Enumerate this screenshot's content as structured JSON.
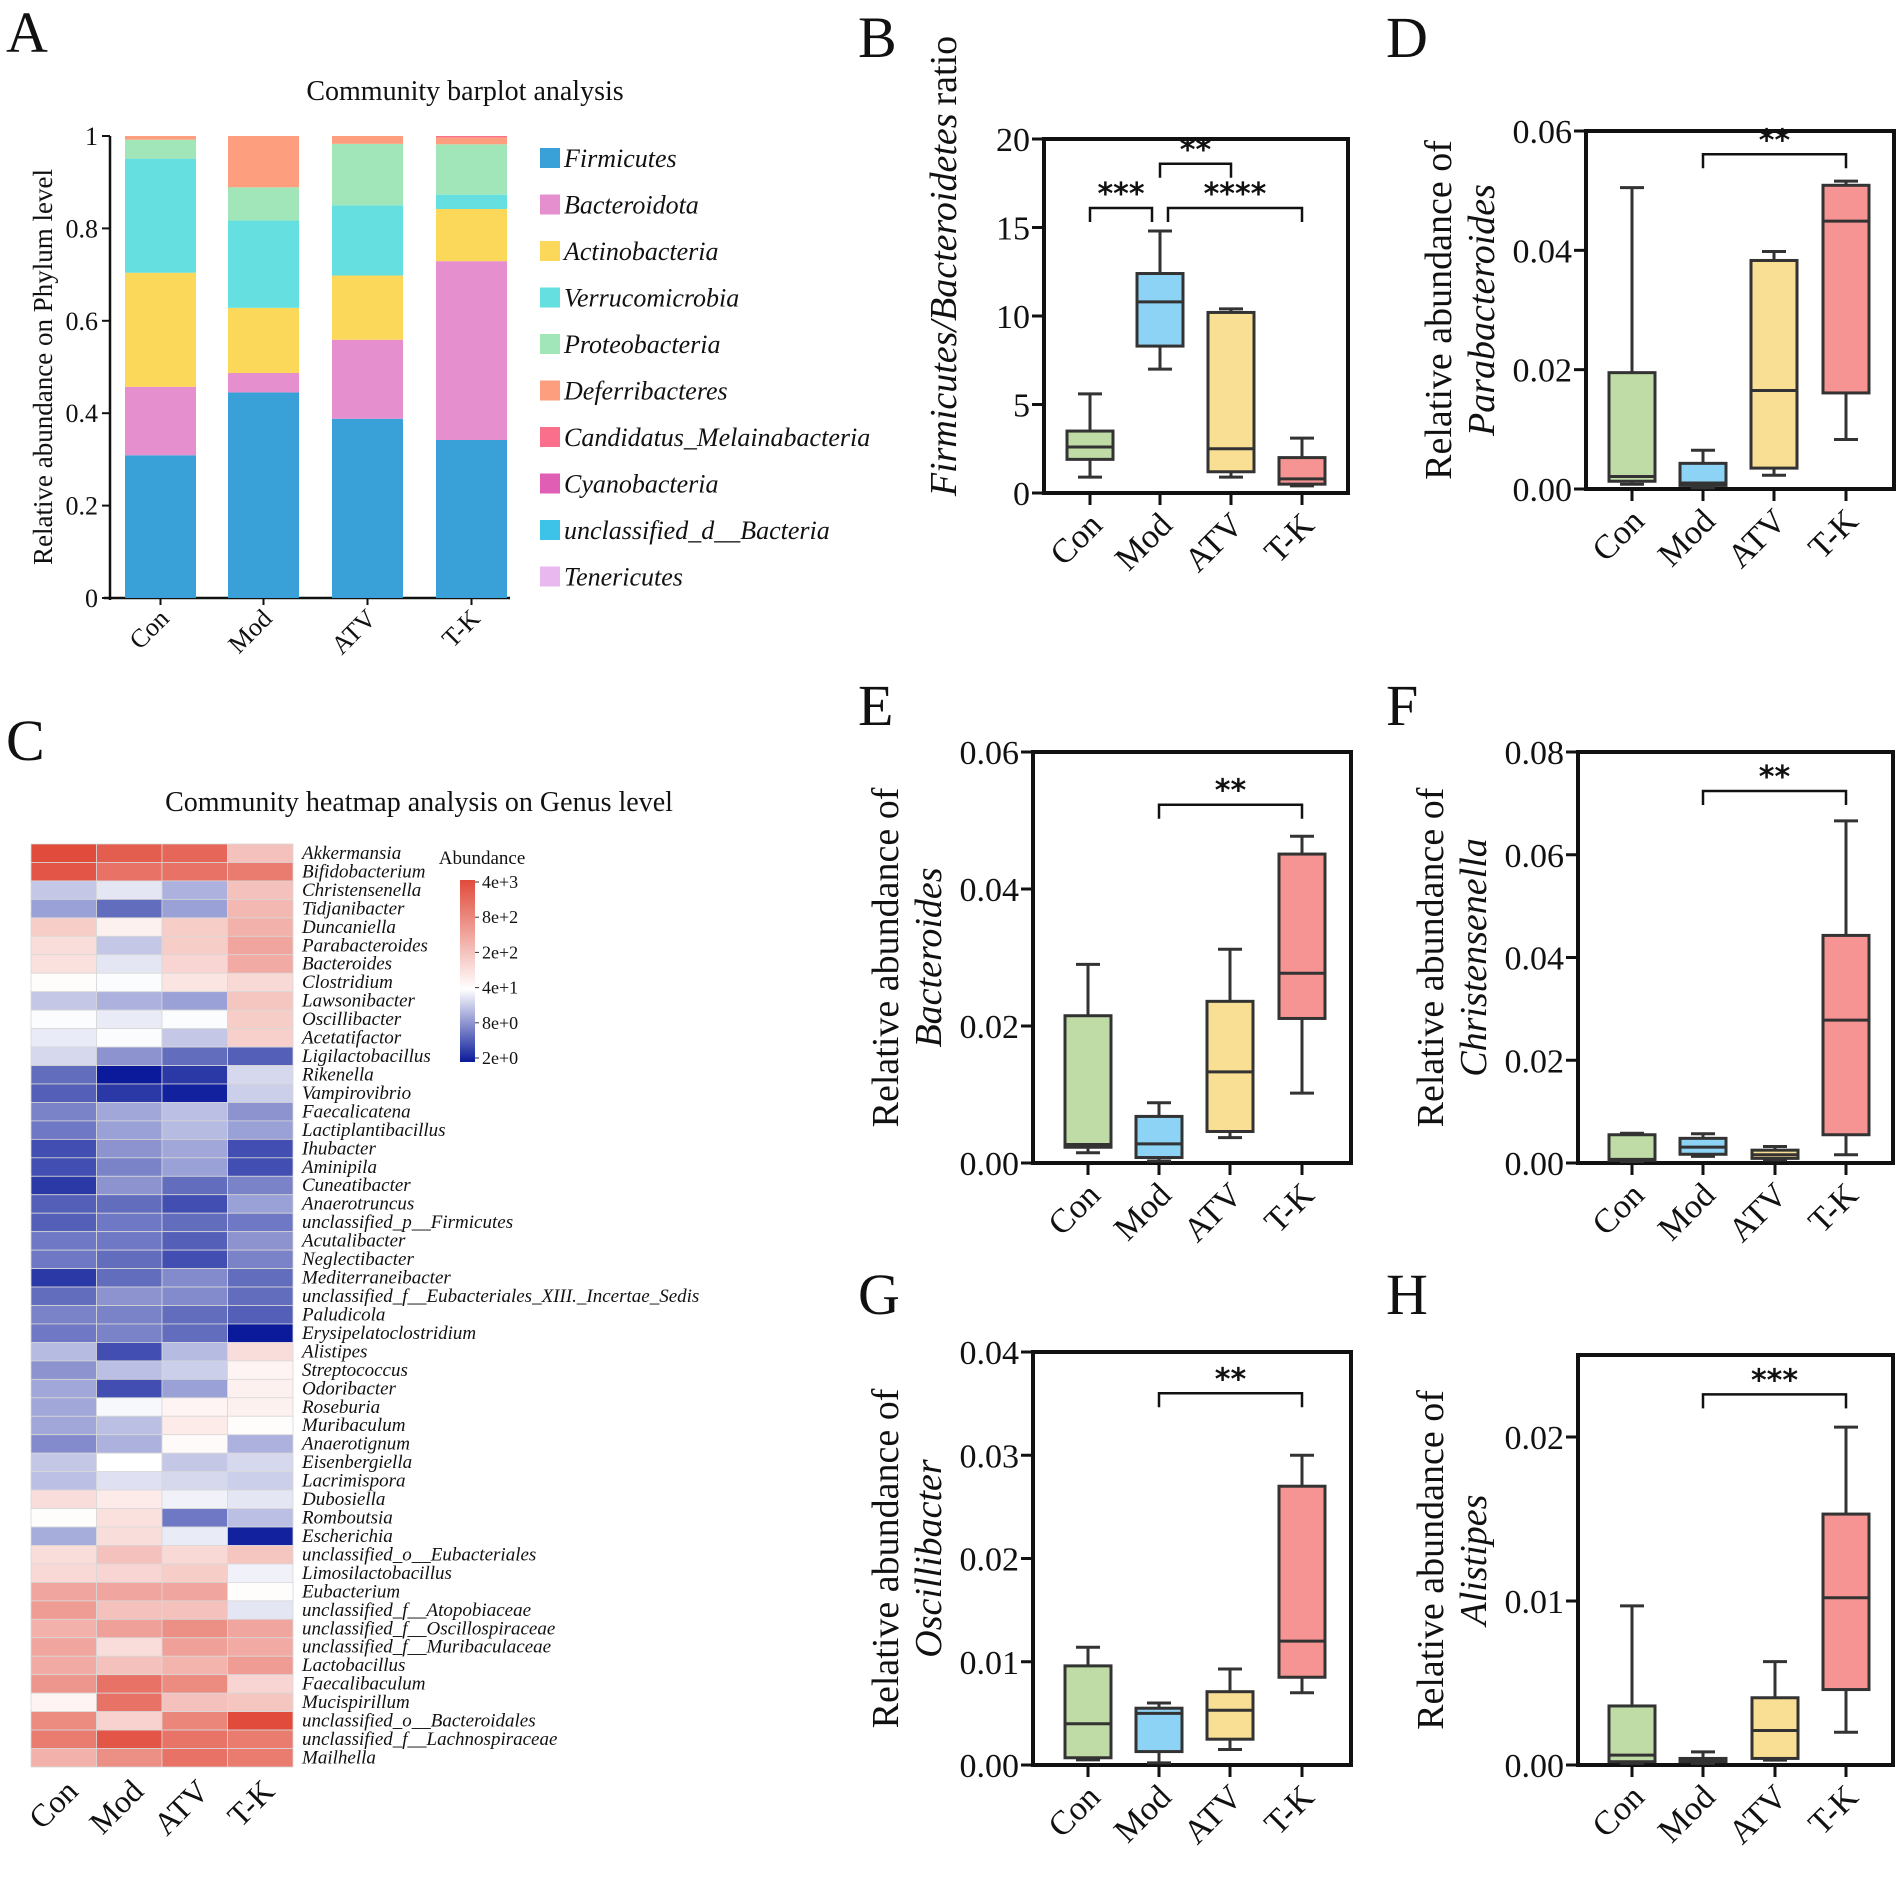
{
  "chart_data": [
    {
      "panel": "A",
      "type": "bar",
      "stacked": true,
      "title": "Community barplot analysis",
      "ylabel": "Relative abundance on Phylum level",
      "ylim": [
        0,
        1
      ],
      "yticks": [
        0,
        0.2,
        0.4,
        0.6,
        0.8,
        1
      ],
      "ytick_labels": [
        "0",
        "0.2",
        "0.4",
        "0.6",
        "0.8",
        "1"
      ],
      "categories": [
        "Con",
        "Mod",
        "ATV",
        "T-K"
      ],
      "legend_position": "right",
      "series": [
        {
          "name": "Firmicutes",
          "color": "#3aa0d8",
          "values": [
            0.309,
            0.445,
            0.388,
            0.342
          ]
        },
        {
          "name": "Bacteroidota",
          "color": "#e58fcf",
          "values": [
            0.148,
            0.042,
            0.171,
            0.387
          ]
        },
        {
          "name": "Actinobacteria",
          "color": "#fcd85a",
          "values": [
            0.247,
            0.141,
            0.139,
            0.113
          ]
        },
        {
          "name": "Verrucomicrobia",
          "color": "#66dfe0",
          "values": [
            0.247,
            0.189,
            0.152,
            0.031
          ]
        },
        {
          "name": "Proteobacteria",
          "color": "#a1e6b8",
          "values": [
            0.041,
            0.072,
            0.133,
            0.109
          ]
        },
        {
          "name": "Deferribacteres",
          "color": "#fd9e7e",
          "values": [
            0.008,
            0.111,
            0.017,
            0.015
          ]
        },
        {
          "name": "Candidatus_Melainabacteria",
          "color": "#f96f8c",
          "values": [
            0,
            0,
            0,
            0.003
          ]
        },
        {
          "name": "Cyanobacteria",
          "color": "#e05fb4",
          "values": [
            0,
            0,
            0,
            0
          ]
        },
        {
          "name": "unclassified_d__Bacteria",
          "color": "#3ec3e8",
          "values": [
            0,
            0,
            0,
            0
          ]
        },
        {
          "name": "Tenericutes",
          "color": "#e8b8ef",
          "values": [
            0,
            0,
            0,
            0
          ]
        }
      ]
    },
    {
      "panel": "C",
      "type": "heatmap",
      "title": "Community heatmap analysis on Genus level",
      "columns": [
        "Con",
        "Mod",
        "ATV",
        "T-K"
      ],
      "legend_title": "Abundance",
      "colorbar_ticks": [
        "4e+3",
        "8e+2",
        "2e+2",
        "4e+1",
        "8e+0",
        "2e+0"
      ],
      "colorbar_range": [
        2,
        4000
      ],
      "scale": "log",
      "colors": {
        "high": "#e14b3b",
        "mid": "#ffffff",
        "low": "#0a1a9a"
      },
      "rows": [
        "Akkermansia",
        "Bifidobacterium",
        "Christensenella",
        "Tidjanibacter",
        "Duncaniella",
        "Parabacteroides",
        "Bacteroides",
        "Clostridium",
        "Lawsonibacter",
        "Oscillibacter",
        "Acetatifactor",
        "Ligilactobacillus",
        "Rikenella",
        "Vampirovibrio",
        "Faecalicatena",
        "Lactiplantibacillus",
        "Ihubacter",
        "Aminipila",
        "Cuneatibacter",
        "Anaerotruncus",
        "unclassified_p__Firmicutes",
        "Acutalibacter",
        "Neglectibacter",
        "Mediterraneibacter",
        "unclassified_f__Eubacteriales_XIII._Incertae_Sedis",
        "Paludicola",
        "Erysipelatoclostridium",
        "Alistipes",
        "Streptococcus",
        "Odoribacter",
        "Roseburia",
        "Muribaculum",
        "Anaerotignum",
        "Eisenbergiella",
        "Lacrimispora",
        "Dubosiella",
        "Romboutsia",
        "Escherichia",
        "unclassified_o__Eubacteriales",
        "Limosilactobacillus",
        "Eubacterium",
        "unclassified_f__Atopobiaceae",
        "unclassified_f__Oscillospiraceae",
        "unclassified_f__Muribaculaceae",
        "Lactobacillus",
        "Faecalibaculum",
        "Mucispirillum",
        "unclassified_o__Bacteroidales",
        "unclassified_f__Lachnospiraceae",
        "Mailhella"
      ],
      "values": [
        [
          4000,
          2500,
          2000,
          200
        ],
        [
          3000,
          1500,
          1500,
          1200
        ],
        [
          20,
          30,
          15,
          200
        ],
        [
          12,
          6,
          12,
          250
        ],
        [
          150,
          60,
          150,
          300
        ],
        [
          100,
          20,
          150,
          400
        ],
        [
          90,
          30,
          120,
          350
        ],
        [
          45,
          40,
          80,
          110
        ],
        [
          20,
          15,
          12,
          180
        ],
        [
          40,
          32,
          40,
          150
        ],
        [
          32,
          40,
          20,
          140
        ],
        [
          25,
          10,
          6,
          5
        ],
        [
          6,
          2,
          3,
          25
        ],
        [
          5,
          3,
          2.2,
          22
        ],
        [
          8,
          13,
          18,
          10
        ],
        [
          7,
          12,
          17,
          12
        ],
        [
          4,
          10,
          13,
          4
        ],
        [
          4,
          8,
          12,
          4
        ],
        [
          3,
          10,
          6,
          8
        ],
        [
          5,
          6,
          4,
          12
        ],
        [
          5,
          7,
          6,
          7
        ],
        [
          7,
          7,
          5,
          10
        ],
        [
          7,
          6,
          4,
          8
        ],
        [
          3,
          6,
          9,
          6
        ],
        [
          6,
          10,
          9,
          6
        ],
        [
          8,
          8,
          6,
          5
        ],
        [
          7,
          8,
          6,
          1.8
        ],
        [
          17,
          4,
          17,
          100
        ],
        [
          10,
          18,
          22,
          55
        ],
        [
          13,
          4,
          12,
          60
        ],
        [
          13,
          38,
          55,
          60
        ],
        [
          13,
          18,
          70,
          45
        ],
        [
          9,
          15,
          48,
          15
        ],
        [
          20,
          42,
          20,
          25
        ],
        [
          18,
          28,
          25,
          22
        ],
        [
          100,
          70,
          35,
          30
        ],
        [
          45,
          90,
          7,
          18
        ],
        [
          14,
          100,
          32,
          2.2
        ],
        [
          100,
          200,
          110,
          180
        ],
        [
          110,
          120,
          150,
          35
        ],
        [
          400,
          400,
          400,
          45
        ],
        [
          500,
          200,
          200,
          30
        ],
        [
          300,
          450,
          700,
          400
        ],
        [
          400,
          100,
          450,
          350
        ],
        [
          350,
          200,
          280,
          500
        ],
        [
          600,
          1500,
          800,
          120
        ],
        [
          55,
          1500,
          200,
          180
        ],
        [
          800,
          130,
          900,
          4000
        ],
        [
          1200,
          3000,
          1400,
          1200
        ],
        [
          300,
          700,
          1500,
          1200
        ]
      ]
    },
    {
      "panel": "B",
      "type": "box",
      "ylabel_italic": "Firmicutes/Bacteroidetes",
      "ylabel_suffix": "ratio",
      "ylim": [
        0,
        20
      ],
      "yticks": [
        0,
        5,
        10,
        15,
        20
      ],
      "ytick_labels": [
        "0",
        "5",
        "10",
        "15",
        "20"
      ],
      "categories": [
        "Con",
        "Mod",
        "ATV",
        "T-K"
      ],
      "colors": [
        "#bfdba6",
        "#8dd3f5",
        "#f9df94",
        "#f59492"
      ],
      "boxes": [
        {
          "min": 0.9,
          "q1": 1.9,
          "median": 2.6,
          "q3": 3.5,
          "max": 5.6
        },
        {
          "min": 7.0,
          "q1": 8.3,
          "median": 10.8,
          "q3": 12.4,
          "max": 14.8
        },
        {
          "min": 0.9,
          "q1": 1.2,
          "median": 2.5,
          "q3": 10.2,
          "max": 10.4
        },
        {
          "min": 0.4,
          "q1": 0.5,
          "median": 0.8,
          "q3": 2.0,
          "max": 3.1
        }
      ],
      "significance": [
        {
          "from": 0,
          "to": 1,
          "y": 16.1,
          "label": "***"
        },
        {
          "from": 1,
          "to": 3,
          "y": 16.1,
          "label": "****"
        },
        {
          "from": 1,
          "to": 2,
          "y": 18.6,
          "label": "**"
        }
      ]
    },
    {
      "panel": "D",
      "type": "box",
      "ylabel_lines": [
        "Relative abundance of",
        "Parabacteroides"
      ],
      "ylim": [
        0,
        0.06
      ],
      "yticks": [
        0,
        0.02,
        0.04,
        0.06
      ],
      "ytick_labels": [
        "0.00",
        "0.02",
        "0.04",
        "0.06"
      ],
      "categories": [
        "Con",
        "Mod",
        "ATV",
        "T-K"
      ],
      "colors": [
        "#bfdba6",
        "#8dd3f5",
        "#f9df94",
        "#f59492"
      ],
      "boxes": [
        {
          "min": 0.0008,
          "q1": 0.0013,
          "median": 0.0021,
          "q3": 0.0195,
          "max": 0.0505
        },
        {
          "min": 0.0002,
          "q1": 0.0006,
          "median": 0.001,
          "q3": 0.0043,
          "max": 0.0065
        },
        {
          "min": 0.0023,
          "q1": 0.0035,
          "median": 0.0165,
          "q3": 0.0383,
          "max": 0.0398
        },
        {
          "min": 0.0083,
          "q1": 0.0161,
          "median": 0.0449,
          "q3": 0.0509,
          "max": 0.0516
        }
      ],
      "significance": [
        {
          "from": 1,
          "to": 3,
          "y": 0.0561,
          "label": "**"
        }
      ]
    },
    {
      "panel": "E",
      "type": "box",
      "ylabel_lines": [
        "Relative abundance of",
        "Bacteroides"
      ],
      "ylim": [
        0,
        0.06
      ],
      "yticks": [
        0,
        0.02,
        0.04,
        0.06
      ],
      "ytick_labels": [
        "0.00",
        "0.02",
        "0.04",
        "0.06"
      ],
      "categories": [
        "Con",
        "Mod",
        "ATV",
        "T-K"
      ],
      "colors": [
        "#bfdba6",
        "#8dd3f5",
        "#f9df94",
        "#f59492"
      ],
      "boxes": [
        {
          "min": 0.0015,
          "q1": 0.0023,
          "median": 0.0027,
          "q3": 0.0215,
          "max": 0.029
        },
        {
          "min": 0.0003,
          "q1": 0.0008,
          "median": 0.0028,
          "q3": 0.0068,
          "max": 0.0088
        },
        {
          "min": 0.0037,
          "q1": 0.0046,
          "median": 0.0133,
          "q3": 0.0236,
          "max": 0.0312
        },
        {
          "min": 0.0102,
          "q1": 0.0211,
          "median": 0.0277,
          "q3": 0.0451,
          "max": 0.0477
        }
      ],
      "significance": [
        {
          "from": 1,
          "to": 3,
          "y": 0.0523,
          "label": "**"
        }
      ]
    },
    {
      "panel": "F",
      "type": "box",
      "ylabel_lines": [
        "Relative abundance of",
        "Christensenella"
      ],
      "ylim": [
        0,
        0.08
      ],
      "yticks": [
        0,
        0.02,
        0.04,
        0.06,
        0.08
      ],
      "ytick_labels": [
        "0.00",
        "0.02",
        "0.04",
        "0.06",
        "0.08"
      ],
      "categories": [
        "Con",
        "Mod",
        "ATV",
        "T-K"
      ],
      "colors": [
        "#bfdba6",
        "#8dd3f5",
        "#f9df94",
        "#f59492"
      ],
      "boxes": [
        {
          "min": 0.0003,
          "q1": 0.0005,
          "median": 0.0007,
          "q3": 0.0055,
          "max": 0.0058
        },
        {
          "min": 0.0013,
          "q1": 0.0017,
          "median": 0.0031,
          "q3": 0.0048,
          "max": 0.0057
        },
        {
          "min": 0.0006,
          "q1": 0.0009,
          "median": 0.0016,
          "q3": 0.0025,
          "max": 0.0032
        },
        {
          "min": 0.0016,
          "q1": 0.0055,
          "median": 0.0278,
          "q3": 0.0443,
          "max": 0.0666
        }
      ],
      "significance": [
        {
          "from": 1,
          "to": 3,
          "y": 0.0724,
          "label": "**"
        }
      ]
    },
    {
      "panel": "G",
      "type": "box",
      "ylabel_lines": [
        "Relative abundance of",
        "Oscillibacter"
      ],
      "ylim": [
        0,
        0.04
      ],
      "yticks": [
        0,
        0.01,
        0.02,
        0.03,
        0.04
      ],
      "ytick_labels": [
        "0.00",
        "0.01",
        "0.02",
        "0.03",
        "0.04"
      ],
      "categories": [
        "Con",
        "Mod",
        "ATV",
        "T-K"
      ],
      "colors": [
        "#bfdba6",
        "#8dd3f5",
        "#f9df94",
        "#f59492"
      ],
      "boxes": [
        {
          "min": 0.0005,
          "q1": 0.0007,
          "median": 0.004,
          "q3": 0.0096,
          "max": 0.0114
        },
        {
          "min": 0.0002,
          "q1": 0.0013,
          "median": 0.005,
          "q3": 0.0055,
          "max": 0.006
        },
        {
          "min": 0.0015,
          "q1": 0.0025,
          "median": 0.0053,
          "q3": 0.0071,
          "max": 0.0093
        },
        {
          "min": 0.007,
          "q1": 0.0085,
          "median": 0.012,
          "q3": 0.027,
          "max": 0.03
        }
      ],
      "significance": [
        {
          "from": 1,
          "to": 3,
          "y": 0.036,
          "label": "**"
        }
      ]
    },
    {
      "panel": "H",
      "type": "box",
      "ylabel_lines": [
        "Relative abundance of",
        "Alistipes"
      ],
      "ylim": [
        0,
        0.025
      ],
      "yticks": [
        0,
        0.01,
        0.02
      ],
      "ytick_labels": [
        "0.00",
        "0.01",
        "0.02"
      ],
      "categories": [
        "Con",
        "Mod",
        "ATV",
        "T-K"
      ],
      "colors": [
        "#bfdba6",
        "#8dd3f5",
        "#f9df94",
        "#f59492"
      ],
      "boxes": [
        {
          "min": 0.0001,
          "q1": 0.0002,
          "median": 0.0006,
          "q3": 0.0036,
          "max": 0.0097
        },
        {
          "min": 0.0001,
          "q1": 0.0002,
          "median": 0.0003,
          "q3": 0.0004,
          "max": 0.0008
        },
        {
          "min": 0.0003,
          "q1": 0.0004,
          "median": 0.0021,
          "q3": 0.0041,
          "max": 0.0063
        },
        {
          "min": 0.002,
          "q1": 0.0046,
          "median": 0.0102,
          "q3": 0.0153,
          "max": 0.0206
        }
      ],
      "significance": [
        {
          "from": 1,
          "to": 3,
          "y": 0.0226,
          "label": "***"
        }
      ]
    }
  ]
}
